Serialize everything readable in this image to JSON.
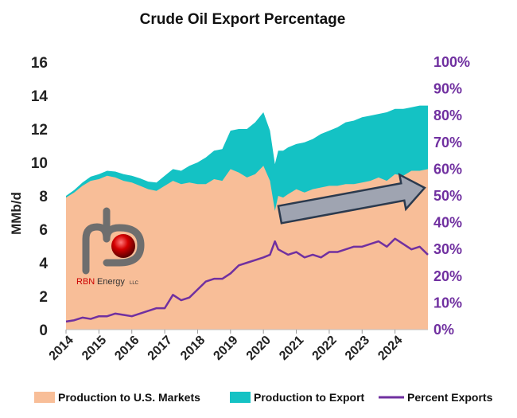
{
  "chart_data": {
    "type": "area",
    "title": "Crude Oil Export Percentage",
    "ylabel": "MMb/d",
    "y2label": "",
    "ylim": [
      0,
      16
    ],
    "y2lim": [
      0,
      100
    ],
    "y_ticks": [
      "0",
      "2",
      "4",
      "6",
      "8",
      "10",
      "12",
      "14",
      "16"
    ],
    "y2_ticks": [
      "0%",
      "10%",
      "20%",
      "30%",
      "40%",
      "50%",
      "60%",
      "70%",
      "80%",
      "90%",
      "100%"
    ],
    "x_ticks": [
      "2014",
      "2015",
      "2016",
      "2017",
      "2018",
      "2019",
      "2020",
      "2021",
      "2022",
      "2023",
      "2024"
    ],
    "xlim": [
      2014.0,
      2025.0
    ],
    "legend_position": "bottom",
    "series": [
      {
        "name": "Production to U.S. Markets",
        "kind": "stacked-area",
        "color": "#F8BE98",
        "x": [
          2014.0,
          2014.25,
          2014.5,
          2014.75,
          2015.0,
          2015.25,
          2015.5,
          2015.75,
          2016.0,
          2016.25,
          2016.5,
          2016.75,
          2017.0,
          2017.25,
          2017.5,
          2017.75,
          2018.0,
          2018.25,
          2018.5,
          2018.75,
          2019.0,
          2019.25,
          2019.5,
          2019.75,
          2020.0,
          2020.2,
          2020.35,
          2020.45,
          2020.6,
          2020.75,
          2021.0,
          2021.25,
          2021.5,
          2021.75,
          2022.0,
          2022.25,
          2022.5,
          2022.75,
          2023.0,
          2023.25,
          2023.5,
          2023.75,
          2024.0,
          2024.25,
          2024.5,
          2024.75,
          2025.0
        ],
        "values": [
          7.9,
          8.2,
          8.6,
          8.9,
          9.0,
          9.2,
          9.1,
          8.9,
          8.8,
          8.6,
          8.4,
          8.3,
          8.6,
          8.9,
          8.7,
          8.8,
          8.7,
          8.7,
          9.0,
          8.9,
          9.6,
          9.4,
          9.1,
          9.3,
          9.8,
          8.9,
          7.1,
          8.0,
          7.9,
          8.1,
          8.4,
          8.2,
          8.4,
          8.5,
          8.6,
          8.6,
          8.7,
          8.7,
          8.8,
          8.9,
          9.1,
          8.9,
          9.3,
          9.2,
          9.5,
          9.5,
          9.6
        ]
      },
      {
        "name": "Production to Export",
        "kind": "stacked-area",
        "color": "#14C2C4",
        "x": [
          2014.0,
          2014.25,
          2014.5,
          2014.75,
          2015.0,
          2015.25,
          2015.5,
          2015.75,
          2016.0,
          2016.25,
          2016.5,
          2016.75,
          2017.0,
          2017.25,
          2017.5,
          2017.75,
          2018.0,
          2018.25,
          2018.5,
          2018.75,
          2019.0,
          2019.25,
          2019.5,
          2019.75,
          2020.0,
          2020.2,
          2020.35,
          2020.45,
          2020.6,
          2020.75,
          2021.0,
          2021.25,
          2021.5,
          2021.75,
          2022.0,
          2022.25,
          2022.5,
          2022.75,
          2023.0,
          2023.25,
          2023.5,
          2023.75,
          2024.0,
          2024.25,
          2024.5,
          2024.75,
          2025.0
        ],
        "values": [
          0.1,
          0.15,
          0.2,
          0.25,
          0.3,
          0.3,
          0.35,
          0.4,
          0.4,
          0.45,
          0.45,
          0.5,
          0.6,
          0.7,
          0.8,
          1.0,
          1.3,
          1.6,
          1.7,
          1.9,
          2.3,
          2.6,
          2.9,
          3.1,
          3.2,
          3.0,
          2.8,
          2.7,
          2.8,
          2.8,
          2.7,
          3.0,
          3.0,
          3.2,
          3.3,
          3.5,
          3.7,
          3.8,
          3.9,
          3.9,
          3.8,
          4.1,
          3.9,
          4.0,
          3.8,
          3.9,
          3.8
        ]
      },
      {
        "name": "Percent Exports",
        "kind": "line",
        "axis": "right",
        "color": "#7030A0",
        "x": [
          2014.0,
          2014.25,
          2014.5,
          2014.75,
          2015.0,
          2015.25,
          2015.5,
          2015.75,
          2016.0,
          2016.25,
          2016.5,
          2016.75,
          2017.0,
          2017.25,
          2017.5,
          2017.75,
          2018.0,
          2018.25,
          2018.5,
          2018.75,
          2019.0,
          2019.25,
          2019.5,
          2019.75,
          2020.0,
          2020.2,
          2020.35,
          2020.45,
          2020.6,
          2020.75,
          2021.0,
          2021.25,
          2021.5,
          2021.75,
          2022.0,
          2022.25,
          2022.5,
          2022.75,
          2023.0,
          2023.25,
          2023.5,
          2023.75,
          2024.0,
          2024.25,
          2024.5,
          2024.75,
          2025.0
        ],
        "values": [
          3,
          3.5,
          4.5,
          4,
          5,
          5,
          6,
          5.5,
          5,
          6,
          7,
          8,
          8,
          13,
          11,
          12,
          15,
          18,
          19,
          19,
          21,
          24,
          25,
          26,
          27,
          28,
          33,
          30,
          29,
          28,
          29,
          27,
          28,
          27,
          29,
          29,
          30,
          31,
          31,
          32,
          33,
          31,
          34,
          32,
          30,
          31,
          28
        ]
      }
    ],
    "arrow": {
      "from": [
        2020.5,
        43
      ],
      "to": [
        2024.9,
        53
      ],
      "color": "#8FA0B5"
    },
    "logo": {
      "text_main": "RBN",
      "text_sub": "Energy",
      "text_suffix": "LLC"
    }
  }
}
